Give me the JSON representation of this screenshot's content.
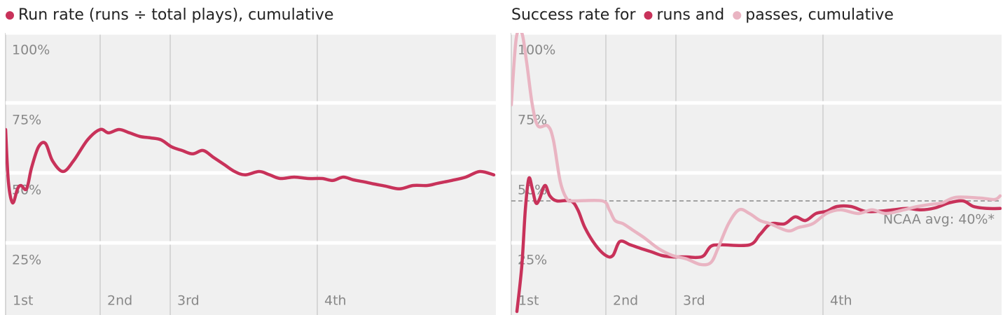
{
  "chart_data": [
    {
      "type": "line",
      "xlim": [
        0,
        140
      ],
      "xticks": [
        {
          "value": 0,
          "label": "1st"
        },
        {
          "value": 27,
          "label": "2nd"
        },
        {
          "value": 47,
          "label": "3rd"
        },
        {
          "value": 89,
          "label": "4th"
        }
      ],
      "ylim": [
        0,
        100
      ],
      "yticks": [
        {
          "value": 25,
          "label": "25%"
        },
        {
          "value": 50,
          "label": "50%"
        },
        {
          "value": 75,
          "label": "75%"
        },
        {
          "value": 100,
          "label": "100%"
        }
      ],
      "grid": true,
      "series": [
        {
          "name": "Run rate (runs ÷ total plays), cumulative",
          "color": "#c8325a",
          "x": [
            0,
            0.8,
            2,
            3.4,
            4.4,
            6,
            7.4,
            9.4,
            11.4,
            13.4,
            16.4,
            19.4,
            23.4,
            27,
            29.4,
            32.4,
            35.4,
            38.4,
            41.4,
            44.4,
            47.4,
            50.4,
            53.4,
            56.4,
            59.4,
            62.4,
            65.4,
            68.4,
            72.4,
            75.4,
            78.4,
            82.4,
            86.4,
            90.4,
            93.4,
            96.4,
            99.4,
            102.4,
            105.4,
            108.4,
            112.4,
            116.4,
            120.4,
            123.4,
            127.4,
            131.4,
            135.4,
            139.4
          ],
          "values": [
            65.5,
            46.8,
            39.3,
            44.3,
            45.5,
            44.3,
            51.8,
            59.3,
            60.5,
            54.3,
            50.5,
            54.3,
            61.8,
            65.5,
            64.3,
            65.5,
            64.3,
            63,
            62.5,
            61.8,
            59.3,
            58,
            56.8,
            58,
            55.5,
            53,
            50.5,
            49.3,
            50.5,
            49.3,
            48,
            48.5,
            48,
            48,
            47.3,
            48.5,
            47.5,
            46.8,
            46,
            45.3,
            44.3,
            45.5,
            45.5,
            46.3,
            47.3,
            48.5,
            50.5,
            49.3
          ]
        }
      ]
    },
    {
      "type": "line",
      "title": "Success rate for",
      "xlim": [
        0,
        140
      ],
      "xticks": [
        {
          "value": 0,
          "label": "1st"
        },
        {
          "value": 27,
          "label": "2nd"
        },
        {
          "value": 47,
          "label": "3rd"
        },
        {
          "value": 89,
          "label": "4th"
        }
      ],
      "ylim": [
        0,
        100
      ],
      "yticks": [
        {
          "value": 25,
          "label": "25%"
        },
        {
          "value": 50,
          "label": "50%"
        },
        {
          "value": 75,
          "label": "75%"
        },
        {
          "value": 100,
          "label": "100%"
        }
      ],
      "grid": true,
      "reference": {
        "value": 40,
        "label": "NCAA avg: 40%*"
      },
      "series": [
        {
          "name": "runs and",
          "color": "#c8325a",
          "x": [
            1.6,
            3,
            4,
            5,
            6,
            7,
            8,
            9.6,
            11,
            13,
            17,
            19,
            21,
            24,
            27,
            29,
            31,
            34,
            37,
            40,
            43,
            46,
            50,
            53,
            55,
            57,
            60,
            68,
            71,
            74,
            78,
            81,
            84,
            87,
            90,
            93,
            97,
            101,
            105,
            109,
            113,
            117,
            121,
            125,
            129,
            132,
            136,
            139.6
          ],
          "values": [
            0.5,
            16.8,
            36.8,
            48,
            44.3,
            39.3,
            40.5,
            45.5,
            41.8,
            40,
            40,
            36.8,
            30.5,
            24.3,
            20.5,
            20.5,
            25.5,
            24.3,
            23,
            21.8,
            20.5,
            20,
            20,
            19.8,
            20.5,
            23.8,
            24.3,
            24.3,
            28,
            31.8,
            31.8,
            34.3,
            33,
            35.5,
            36.3,
            38,
            38,
            36.3,
            36.3,
            36.8,
            37.3,
            36.8,
            37.5,
            39.3,
            40,
            38,
            37.3,
            37.3
          ]
        },
        {
          "name": "passes, cumulative",
          "color": "#e9b4c2",
          "x": [
            0,
            1.4,
            3,
            4.4,
            6,
            7.6,
            10.4,
            12,
            14,
            16,
            18,
            26,
            28,
            29.6,
            32,
            35,
            38,
            42,
            46,
            50,
            54,
            57,
            59,
            62,
            65,
            68,
            71,
            74,
            79,
            82,
            86,
            90,
            94,
            99,
            103,
            107,
            112,
            116,
            120,
            123,
            127,
            134,
            138,
            139.6
          ],
          "values": [
            74.3,
            98,
            100,
            89.3,
            74.3,
            66.8,
            66.8,
            61.8,
            46.8,
            40.5,
            40,
            40,
            36.8,
            33,
            31.8,
            29.3,
            26.8,
            23,
            20.5,
            19.3,
            17.3,
            18,
            23,
            31.8,
            36.8,
            35.5,
            33,
            31.8,
            29.3,
            30.5,
            31.8,
            35.5,
            36.8,
            35.5,
            36.8,
            35.5,
            36.8,
            38,
            38.8,
            39.3,
            41.3,
            41,
            40.5,
            41.8
          ]
        }
      ]
    }
  ]
}
